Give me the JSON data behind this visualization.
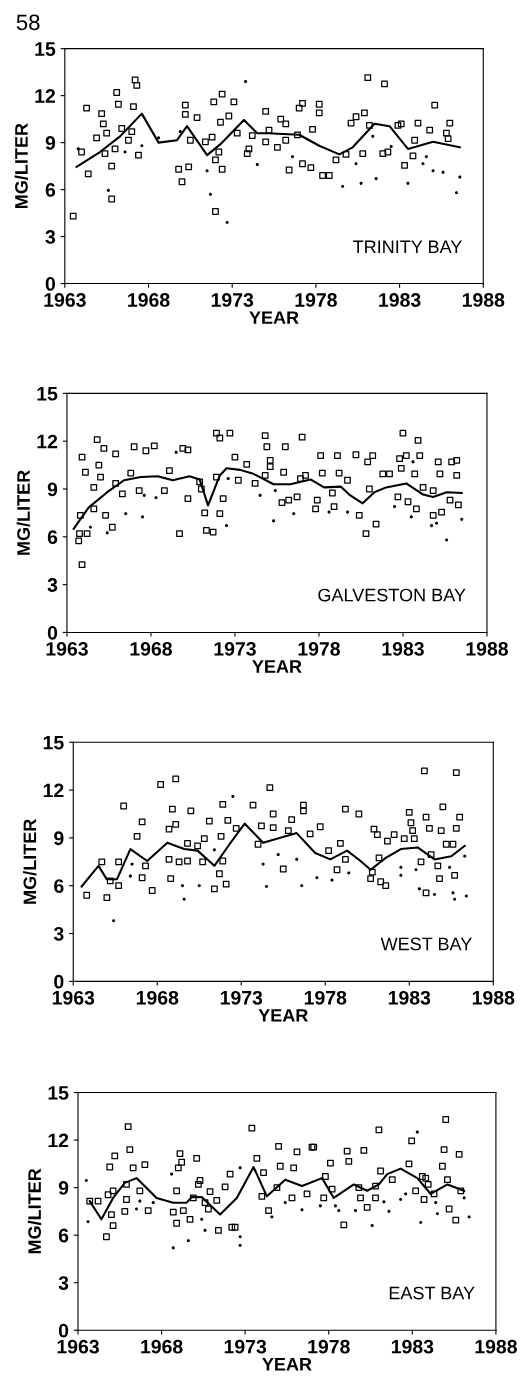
{
  "chart_data": [
    {
      "type": "scatter",
      "title": "TRINITY BAY",
      "xlabel": "YEAR",
      "ylabel": "MG/LITER",
      "annotations": [
        "58"
      ],
      "xlim": [
        1963,
        1988
      ],
      "xticks": [
        1963,
        1968,
        1973,
        1978,
        1983,
        1988
      ],
      "ylim": [
        0,
        15
      ],
      "yticks": [
        0,
        3,
        6,
        9,
        12,
        15
      ],
      "grid": false,
      "legend": false,
      "series": [
        {
          "type": "scatter",
          "marker": "square",
          "color": "#000000",
          "x": [
            1963.5,
            1964.0,
            1964.3,
            1964.4,
            1964.9,
            1965.2,
            1965.3,
            1965.5,
            1965.4,
            1965.8,
            1965.8,
            1966.0,
            1966.1,
            1966.2,
            1966.4,
            1966.8,
            1967.0,
            1967.1,
            1967.2,
            1967.3,
            1967.4,
            1969.8,
            1970.0,
            1970.2,
            1970.2,
            1970.4,
            1970.5,
            1970.9,
            1971.4,
            1971.9,
            1971.8,
            1972.0,
            1972.0,
            1972.2,
            1972.3,
            1972.4,
            1972.4,
            1972.8,
            1973.1,
            1973.3,
            1973.9,
            1974.0,
            1974.2,
            1975.0,
            1975.0,
            1975.2,
            1975.7,
            1975.9,
            1976.2,
            1976.2,
            1976.4,
            1976.9,
            1977.0,
            1977.2,
            1977.2,
            1977.7,
            1977.8,
            1978.2,
            1978.2,
            1978.4,
            1978.8,
            1979.2,
            1979.8,
            1980.1,
            1980.4,
            1980.8,
            1980.9,
            1981.1,
            1981.2,
            1982.0,
            1982.1,
            1982.3,
            1982.9,
            1983.1,
            1983.3,
            1983.8,
            1983.9,
            1984.1,
            1984.8,
            1985.1,
            1985.8,
            1985.9,
            1986.0
          ],
          "values": [
            4.3,
            8.4,
            11.2,
            7.0,
            9.3,
            10.85,
            10.2,
            9.6,
            8.3,
            7.5,
            5.4,
            8.6,
            12.2,
            11.45,
            9.9,
            9.15,
            9.7,
            11.3,
            13.0,
            12.65,
            8.2,
            7.3,
            6.5,
            10.8,
            11.4,
            7.45,
            9.15,
            10.6,
            9.05,
            11.6,
            9.35,
            7.9,
            4.6,
            8.4,
            10.3,
            12.1,
            7.3,
            10.7,
            11.6,
            9.6,
            8.3,
            8.6,
            9.45,
            11.0,
            9.05,
            9.8,
            8.7,
            10.5,
            9.15,
            10.2,
            7.25,
            9.5,
            11.2,
            11.5,
            7.65,
            7.4,
            9.85,
            11.45,
            10.9,
            6.9,
            6.9,
            7.9,
            8.25,
            10.25,
            10.65,
            8.3,
            10.9,
            13.15,
            10.1,
            8.3,
            12.75,
            8.4,
            10.1,
            10.2,
            7.55,
            8.15,
            9.15,
            10.25,
            9.8,
            11.4,
            9.6,
            9.25,
            10.25
          ]
        },
        {
          "type": "scatter",
          "marker": "circle",
          "color": "#000000",
          "x": [
            1963.8,
            1965.6,
            1966.6,
            1967.6,
            1968.6,
            1969.9,
            1971.5,
            1971.7,
            1972.7,
            1973.8,
            1974.5,
            1976.6,
            1979.6,
            1980.4,
            1980.7,
            1981.4,
            1981.6,
            1982.5,
            1983.5,
            1984.4,
            1984.6,
            1985.0,
            1985.6,
            1986.4,
            1986.6
          ],
          "values": [
            8.6,
            5.95,
            8.4,
            8.8,
            9.3,
            9.7,
            7.2,
            5.7,
            3.9,
            12.9,
            7.6,
            8.1,
            6.2,
            7.65,
            6.4,
            9.4,
            6.7,
            8.75,
            6.4,
            7.65,
            8.1,
            7.2,
            7.1,
            5.8,
            6.8
          ]
        },
        {
          "type": "line",
          "marker": "none",
          "line_style": "solid",
          "color": "#000000",
          "x": [
            1963.7,
            1965.1,
            1966.3,
            1967.6,
            1968.6,
            1969.7,
            1970.3,
            1971.5,
            1972.3,
            1973.7,
            1974.5,
            1975.1,
            1977.0,
            1978.2,
            1979.4,
            1980.2,
            1981.5,
            1982.4,
            1983.5,
            1985.0,
            1986.6
          ],
          "values": [
            7.45,
            8.4,
            9.4,
            10.85,
            9.0,
            9.15,
            10.05,
            8.2,
            8.9,
            10.45,
            9.6,
            9.6,
            9.5,
            8.8,
            8.25,
            8.7,
            10.2,
            10.05,
            8.6,
            9.05,
            8.7
          ]
        }
      ]
    },
    {
      "type": "scatter",
      "title": "GALVESTON BAY",
      "xlabel": "YEAR",
      "ylabel": "MG/LITER",
      "xlim": [
        1963,
        1988
      ],
      "xticks": [
        1963,
        1968,
        1973,
        1978,
        1983,
        1988
      ],
      "ylim": [
        0,
        15
      ],
      "yticks": [
        0,
        3,
        6,
        9,
        12,
        15
      ],
      "grid": false,
      "legend": false,
      "series": [
        {
          "type": "scatter",
          "marker": "square",
          "color": "#000000",
          "x": [
            1963.7,
            1963.75,
            1963.9,
            1963.8,
            1963.9,
            1964.1,
            1964.2,
            1964.6,
            1964.6,
            1964.8,
            1964.9,
            1965.0,
            1965.2,
            1965.3,
            1965.7,
            1965.9,
            1965.9,
            1966.3,
            1966.8,
            1967.0,
            1967.3,
            1967.7,
            1968.2,
            1968.8,
            1969.1,
            1969.7,
            1969.9,
            1970.2,
            1970.2,
            1970.9,
            1971.0,
            1971.2,
            1971.3,
            1971.7,
            1971.9,
            1971.9,
            1972.1,
            1972.1,
            1972.3,
            1972.7,
            1973.0,
            1973.2,
            1973.7,
            1974.2,
            1974.8,
            1974.9,
            1975.1,
            1975.1,
            1974.8,
            1975.8,
            1975.9,
            1976.0,
            1976.2,
            1976.7,
            1976.9,
            1977.0,
            1977.2,
            1977.8,
            1977.9,
            1978.1,
            1978.2,
            1978.8,
            1978.9,
            1979.1,
            1979.2,
            1979.7,
            1980.2,
            1980.4,
            1980.8,
            1980.9,
            1981.0,
            1981.2,
            1981.4,
            1981.8,
            1982.2,
            1982.7,
            1983.0,
            1982.8,
            1982.9,
            1983.2,
            1983.3,
            1983.7,
            1983.8,
            1983.9,
            1984.0,
            1984.2,
            1984.8,
            1984.8,
            1985.1,
            1985.2,
            1985.3,
            1985.8,
            1985.9,
            1986.2,
            1986.2,
            1986.3
          ],
          "values": [
            5.75,
            6.2,
            4.25,
            7.35,
            11.0,
            10.05,
            6.2,
            9.1,
            7.75,
            12.1,
            10.5,
            9.75,
            11.55,
            7.35,
            6.6,
            11.2,
            9.35,
            8.7,
            10.0,
            11.65,
            8.9,
            11.4,
            11.7,
            8.9,
            10.15,
            6.2,
            11.55,
            8.4,
            11.45,
            9.45,
            9.0,
            7.5,
            6.4,
            6.3,
            9.75,
            12.5,
            7.45,
            12.2,
            8.4,
            12.5,
            11.0,
            9.55,
            10.55,
            9.35,
            12.35,
            11.65,
            10.8,
            10.4,
            9.85,
            8.15,
            10.05,
            11.65,
            8.3,
            8.5,
            9.65,
            12.25,
            9.85,
            7.75,
            8.3,
            11.1,
            10.0,
            8.75,
            7.9,
            11.1,
            10.0,
            9.55,
            11.15,
            7.35,
            6.2,
            10.7,
            9.0,
            11.1,
            6.8,
            9.95,
            9.95,
            8.5,
            12.5,
            10.9,
            10.3,
            11.1,
            8.2,
            9.95,
            7.75,
            12.05,
            11.1,
            9.1,
            8.9,
            7.35,
            10.7,
            9.95,
            7.55,
            8.3,
            10.7,
            10.8,
            9.85,
            8.0
          ]
        },
        {
          "type": "scatter",
          "marker": "circle",
          "color": "#000000",
          "x": [
            1964.4,
            1965.4,
            1966.5,
            1967.5,
            1967.6,
            1968.3,
            1969.5,
            1972.5,
            1972.6,
            1974.5,
            1975.3,
            1975.4,
            1976.5,
            1978.6,
            1979.7,
            1982.5,
            1983.6,
            1983.5,
            1984.7,
            1985.0,
            1985.6,
            1986.5
          ],
          "values": [
            6.6,
            6.25,
            7.45,
            7.25,
            8.6,
            8.45,
            11.3,
            6.7,
            9.65,
            8.6,
            7.0,
            8.9,
            7.45,
            7.55,
            7.55,
            7.9,
            10.7,
            7.25,
            6.7,
            6.85,
            5.8,
            7.1
          ]
        },
        {
          "type": "line",
          "marker": "none",
          "line_style": "solid",
          "color": "#000000",
          "x": [
            1963.4,
            1964.3,
            1965.4,
            1966.4,
            1967.4,
            1968.4,
            1969.3,
            1970.3,
            1970.9,
            1971.4,
            1972.1,
            1972.5,
            1973.3,
            1974.1,
            1975.3,
            1976.3,
            1977.5,
            1978.3,
            1979.3,
            1979.8,
            1980.6,
            1981.3,
            1982.0,
            1983.2,
            1984.2,
            1984.8,
            1985.6,
            1986.5
          ],
          "values": [
            6.5,
            7.85,
            8.8,
            9.55,
            9.75,
            9.8,
            9.55,
            9.8,
            9.6,
            7.97,
            9.85,
            10.3,
            10.2,
            9.95,
            9.3,
            9.3,
            9.6,
            9.1,
            9.15,
            8.65,
            8.1,
            8.8,
            9.1,
            9.35,
            8.65,
            8.5,
            8.8,
            8.75
          ]
        }
      ]
    },
    {
      "type": "scatter",
      "title": "WEST BAY",
      "xlabel": "YEAR",
      "ylabel": "MG/LITER",
      "xlim": [
        1963,
        1988
      ],
      "xticks": [
        1963,
        1968,
        1973,
        1978,
        1983,
        1988
      ],
      "ylim": [
        0,
        15
      ],
      "yticks": [
        0,
        3,
        6,
        9,
        12,
        15
      ],
      "grid": false,
      "legend": false,
      "series": [
        {
          "type": "scatter",
          "marker": "square",
          "color": "#000000",
          "x": [
            1963.8,
            1964.7,
            1965.0,
            1965.2,
            1965.7,
            1965.7,
            1966.0,
            1966.8,
            1967.1,
            1967.1,
            1967.3,
            1967.7,
            1968.2,
            1968.7,
            1968.7,
            1968.8,
            1968.9,
            1969.1,
            1969.1,
            1969.3,
            1969.8,
            1969.8,
            1970.0,
            1970.4,
            1970.7,
            1970.8,
            1971.1,
            1971.4,
            1971.7,
            1971.8,
            1971.9,
            1971.9,
            1972.1,
            1972.2,
            1972.7,
            1973.7,
            1974.2,
            1974.0,
            1974.7,
            1974.9,
            1974.9,
            1975.5,
            1975.8,
            1976.0,
            1976.7,
            1976.7,
            1977.1,
            1977.7,
            1978.2,
            1978.7,
            1978.9,
            1979.2,
            1979.2,
            1980.0,
            1980.7,
            1980.8,
            1980.9,
            1981.1,
            1981.2,
            1981.3,
            1981.6,
            1981.7,
            1982.1,
            1982.7,
            1983.0,
            1983.1,
            1983.2,
            1983.3,
            1983.7,
            1983.9,
            1984.0,
            1984.0,
            1984.2,
            1984.3,
            1984.7,
            1984.8,
            1984.9,
            1985.0,
            1985.2,
            1985.6,
            1985.7,
            1985.8,
            1985.8,
            1986.0
          ],
          "values": [
            5.4,
            7.5,
            5.25,
            6.3,
            6.0,
            7.5,
            11.0,
            9.1,
            10.0,
            6.5,
            7.25,
            5.7,
            12.35,
            9.55,
            7.65,
            6.45,
            10.8,
            12.7,
            9.85,
            7.5,
            7.55,
            8.65,
            10.7,
            8.5,
            7.5,
            8.95,
            10.05,
            5.8,
            6.75,
            9.1,
            7.55,
            11.1,
            6.1,
            10.1,
            9.6,
            11.05,
            9.75,
            8.6,
            12.15,
            10.5,
            9.65,
            7.05,
            9.45,
            10.15,
            11.05,
            10.7,
            9.25,
            9.7,
            8.2,
            7.0,
            8.65,
            7.65,
            10.8,
            10.5,
            6.45,
            6.85,
            9.55,
            9.2,
            7.75,
            6.25,
            6.0,
            8.8,
            9.2,
            8.95,
            10.6,
            9.95,
            9.45,
            8.95,
            7.5,
            13.2,
            5.55,
            10.3,
            9.6,
            7.95,
            7.25,
            6.45,
            9.45,
            10.95,
            8.6,
            8.6,
            6.65,
            9.6,
            13.1,
            10.3
          ]
        },
        {
          "type": "scatter",
          "marker": "circle",
          "color": "#000000",
          "x": [
            1965.4,
            1966.5,
            1966.4,
            1969.5,
            1969.6,
            1970.5,
            1971.4,
            1972.5,
            1974.3,
            1974.5,
            1975.2,
            1976.3,
            1976.6,
            1977.5,
            1978.4,
            1979.4,
            1982.5,
            1982.5,
            1983.4,
            1983.6,
            1984.5,
            1985.4,
            1985.6,
            1985.7,
            1986.3,
            1986.4
          ],
          "values": [
            3.8,
            7.35,
            6.6,
            6.0,
            5.15,
            6.0,
            8.25,
            11.6,
            7.35,
            5.95,
            7.95,
            7.65,
            6.0,
            6.5,
            6.35,
            6.8,
            7.15,
            6.65,
            7.0,
            5.8,
            5.45,
            7.15,
            5.55,
            5.15,
            7.85,
            5.35
          ]
        },
        {
          "type": "line",
          "marker": "none",
          "line_style": "solid",
          "color": "#000000",
          "x": [
            1963.5,
            1964.5,
            1965.0,
            1965.6,
            1966.4,
            1967.4,
            1968.6,
            1969.6,
            1970.4,
            1971.4,
            1972.3,
            1973.2,
            1973.7,
            1974.3,
            1976.3,
            1977.4,
            1978.3,
            1979.3,
            1980.1,
            1980.7,
            1981.6,
            1982.5,
            1983.5,
            1984.5,
            1985.5,
            1986.3
          ],
          "values": [
            5.95,
            7.25,
            6.4,
            6.4,
            8.3,
            7.55,
            8.7,
            8.3,
            8.2,
            7.25,
            8.6,
            9.9,
            9.35,
            8.7,
            9.3,
            8.05,
            7.65,
            8.2,
            7.55,
            7.0,
            7.75,
            8.3,
            8.4,
            7.65,
            7.85,
            8.5
          ]
        }
      ]
    },
    {
      "type": "scatter",
      "title": "EAST BAY",
      "xlabel": "YEAR",
      "ylabel": "MG/LITER",
      "xlim": [
        1963,
        1988
      ],
      "xticks": [
        1963,
        1968,
        1973,
        1978,
        1983,
        1988
      ],
      "ylim": [
        0,
        15
      ],
      "yticks": [
        0,
        3,
        6,
        9,
        12,
        15
      ],
      "grid": false,
      "legend": false,
      "series": [
        {
          "type": "scatter",
          "marker": "square",
          "color": "#000000",
          "x": [
            1963.7,
            1964.2,
            1964.7,
            1964.8,
            1964.9,
            1965.0,
            1965.1,
            1965.1,
            1965.2,
            1965.8,
            1965.9,
            1965.9,
            1966.0,
            1966.1,
            1966.3,
            1966.7,
            1967.0,
            1967.2,
            1968.7,
            1968.9,
            1968.9,
            1969.0,
            1969.1,
            1969.2,
            1969.3,
            1969.7,
            1969.9,
            1970.1,
            1970.2,
            1970.3,
            1970.6,
            1970.8,
            1970.9,
            1971.3,
            1971.4,
            1971.8,
            1972.1,
            1972.2,
            1972.4,
            1973.4,
            1973.7,
            1974.1,
            1974.0,
            1974.4,
            1974.9,
            1975.0,
            1975.1,
            1975.8,
            1975.9,
            1976.1,
            1976.7,
            1977.0,
            1977.1,
            1977.7,
            1977.8,
            1978.1,
            1978.2,
            1978.9,
            1979.1,
            1979.2,
            1979.8,
            1979.9,
            1980.1,
            1980.3,
            1980.8,
            1980.8,
            1981.0,
            1981.1,
            1981.8,
            1982.8,
            1982.96,
            1983.2,
            1983.6,
            1983.7,
            1983.8,
            1983.95,
            1984.3,
            1984.8,
            1984.9,
            1985.0,
            1985.1,
            1985.2,
            1985.6,
            1985.8,
            1985.9
          ],
          "values": [
            8.15,
            8.15,
            5.9,
            8.55,
            10.3,
            7.3,
            8.8,
            6.6,
            11.0,
            7.5,
            8.25,
            9.2,
            12.85,
            11.4,
            10.25,
            8.8,
            10.45,
            7.55,
            7.45,
            8.8,
            6.75,
            10.25,
            11.15,
            10.6,
            7.55,
            7.0,
            8.35,
            10.85,
            9.2,
            9.45,
            8.05,
            7.65,
            8.75,
            8.2,
            6.3,
            9.05,
            9.85,
            6.5,
            6.5,
            12.75,
            10.85,
            9.95,
            8.45,
            7.55,
            9.0,
            11.6,
            10.35,
            8.35,
            10.25,
            11.25,
            8.6,
            11.55,
            11.55,
            8.35,
            9.7,
            10.55,
            8.9,
            6.65,
            11.3,
            10.65,
            9.0,
            8.35,
            11.35,
            7.75,
            8.35,
            9.1,
            12.65,
            10.05,
            9.5,
            10.5,
            11.95,
            8.8,
            9.7,
            8.25,
            9.6,
            9.2,
            8.6,
            10.35,
            11.4,
            13.3,
            9.5,
            7.65,
            6.95,
            11.1,
            8.8
          ]
        },
        {
          "type": "scatter",
          "marker": "circle",
          "color": "#000000",
          "x": [
            1963.5,
            1963.6,
            1966.5,
            1966.7,
            1967.5,
            1968.6,
            1968.7,
            1969.6,
            1970.4,
            1970.6,
            1972.7,
            1972.7,
            1972.7,
            1974.6,
            1975.4,
            1976.4,
            1977.5,
            1978.4,
            1978.6,
            1979.6,
            1980.6,
            1981.3,
            1981.6,
            1982.3,
            1982.6,
            1983.3,
            1983.5,
            1984.4,
            1984.5,
            1986.1,
            1986.4
          ],
          "values": [
            9.45,
            6.85,
            7.65,
            8.15,
            8.05,
            9.85,
            5.2,
            5.65,
            7.0,
            6.3,
            10.25,
            5.35,
            5.9,
            7.15,
            8.05,
            7.6,
            7.85,
            7.85,
            7.55,
            7.55,
            6.6,
            8.1,
            7.5,
            8.25,
            8.6,
            12.5,
            6.8,
            8.05,
            7.35,
            8.35,
            7.15
          ]
        },
        {
          "type": "line",
          "marker": "none",
          "line_style": "solid",
          "color": "#000000",
          "x": [
            1963.7,
            1964.4,
            1965.1,
            1965.8,
            1966.5,
            1967.7,
            1968.7,
            1969.5,
            1969.8,
            1970.4,
            1970.9,
            1971.5,
            1972.5,
            1973.5,
            1974.3,
            1975.4,
            1976.4,
            1977.6,
            1978.3,
            1979.5,
            1980.3,
            1981.0,
            1981.5,
            1982.3,
            1983.3,
            1984.1,
            1985.1,
            1986.1
          ],
          "values": [
            8.15,
            7.0,
            8.35,
            9.3,
            9.6,
            8.35,
            8.05,
            8.05,
            8.4,
            8.4,
            7.9,
            7.3,
            8.35,
            10.3,
            8.45,
            9.5,
            9.1,
            9.6,
            8.35,
            9.2,
            8.8,
            9.2,
            9.85,
            10.2,
            9.6,
            8.6,
            9.2,
            8.8
          ]
        }
      ]
    }
  ]
}
